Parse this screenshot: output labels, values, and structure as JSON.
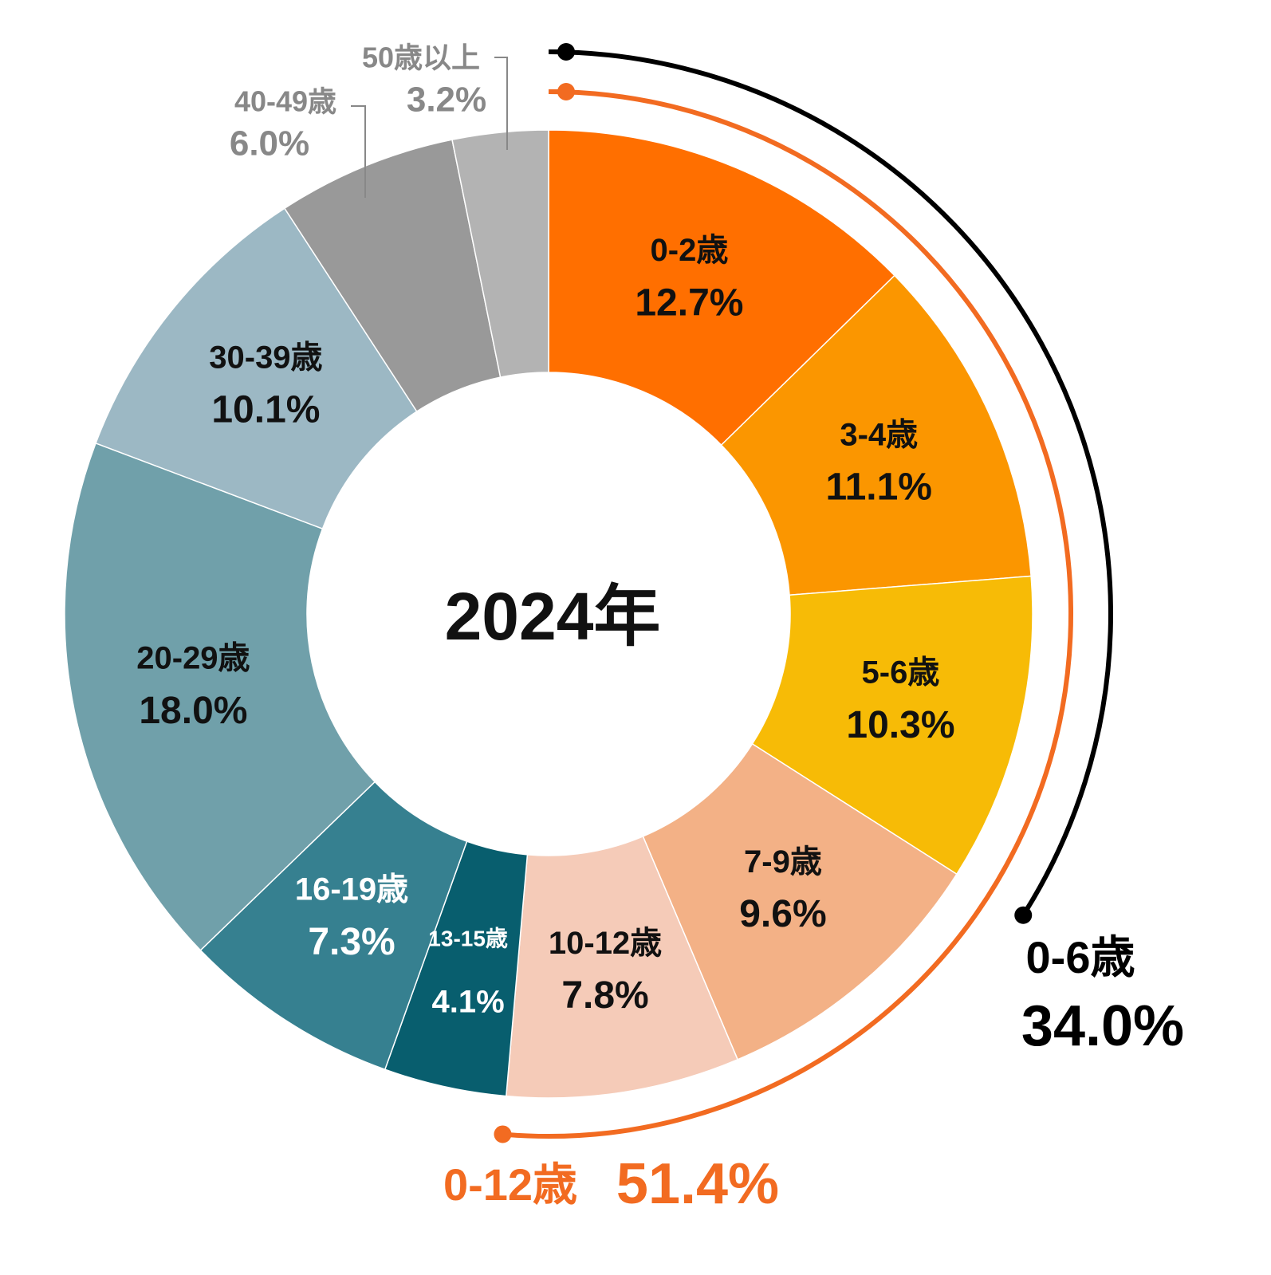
{
  "chart_data": {
    "type": "donut",
    "center_label": "2024年",
    "categories": [
      "0-2歳",
      "3-4歳",
      "5-6歳",
      "7-9歳",
      "10-12歳",
      "13-15歳",
      "16-19歳",
      "20-29歳",
      "30-39歳",
      "40-49歳",
      "50歳以上"
    ],
    "values": [
      12.7,
      11.1,
      10.3,
      9.6,
      7.8,
      4.1,
      7.3,
      18.0,
      10.1,
      6.0,
      3.2
    ],
    "value_labels": [
      "12.7%",
      "11.1%",
      "10.3%",
      "9.6%",
      "7.8%",
      "4.1%",
      "7.3%",
      "18.0%",
      "10.1%",
      "6.0%",
      "3.2%"
    ],
    "colors": [
      "#ff6f00",
      "#fb9600",
      "#f7bb06",
      "#f3b186",
      "#f5cbb8",
      "#085e6e",
      "#368090",
      "#70a0aa",
      "#9cb8c4",
      "#999999",
      "#b3b3b3"
    ],
    "annotations": [
      {
        "label": "0-6歳",
        "value": 34.0,
        "value_label": "34.0%",
        "color": "#000000"
      },
      {
        "label": "0-12歳",
        "value": 51.4,
        "value_label": "51.4%",
        "color": "#f26b21"
      }
    ]
  }
}
